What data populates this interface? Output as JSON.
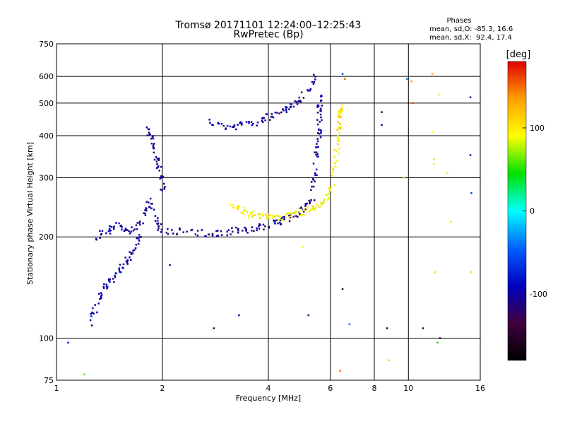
{
  "chart_data": {
    "type": "scatter",
    "title": "Tromsø 20171101 12:24:00–12:25:43",
    "subtitle": "RwPretec (Bp)",
    "xlabel": "Frequency [MHz]",
    "ylabel": "Stationary phase Virtual Height [km]",
    "x_scale": "log",
    "y_scale": "log",
    "xlim": [
      1,
      16
    ],
    "ylim": [
      75,
      750
    ],
    "x_ticks": [
      1,
      2,
      4,
      6,
      8,
      10,
      16
    ],
    "x_tick_labels": [
      "1",
      "2",
      "4",
      "6",
      "8",
      "10",
      "16"
    ],
    "y_ticks": [
      75,
      100,
      200,
      300,
      400,
      500,
      600,
      750
    ],
    "y_tick_labels": [
      "75",
      "100",
      "200",
      "300",
      "400",
      "500",
      "600",
      "750"
    ],
    "grid": true,
    "stats": {
      "title": "Phases",
      "line_o": "mean, sd,O: -85.3, 16.6",
      "line_x": "mean, sd,X:  92.4, 17.4"
    },
    "colorbar": {
      "label": "[deg]",
      "range": [
        -180,
        180
      ],
      "ticks": [
        100,
        0,
        -100
      ],
      "tick_labels": [
        "100",
        "0",
        "-100"
      ],
      "colors": [
        "#e00000",
        "#ffa000",
        "#ffff00",
        "#00e000",
        "#00ffff",
        "#0060ff",
        "#0000c0",
        "#400040",
        "#000000"
      ]
    },
    "series": [
      {
        "segments": [
          {
            "x": [
              1.24,
              1.28,
              1.32,
              1.36,
              1.4,
              1.45,
              1.5,
              1.55,
              1.6,
              1.65,
              1.7,
              1.72
            ],
            "y": [
              110,
              120,
              130,
              138,
              145,
              150,
              158,
              165,
              172,
              180,
              190,
              200
            ],
            "phase": -95
          },
          {
            "x": [
              1.3,
              1.35,
              1.42,
              1.48,
              1.55,
              1.62,
              1.68,
              1.75,
              1.8,
              1.85,
              1.9,
              1.95,
              2.0
            ],
            "y": [
              200,
              205,
              210,
              215,
              212,
              208,
              215,
              225,
              240,
              260,
              230,
              215,
              210
            ],
            "phase": -100
          },
          {
            "x": [
              1.82,
              1.85,
              1.88,
              1.92,
              1.95,
              1.98,
              2.0,
              2.02
            ],
            "y": [
              420,
              400,
              380,
              350,
              330,
              310,
              290,
              270
            ],
            "phase": -105
          },
          {
            "x": [
              2.05,
              2.2,
              2.4,
              2.6,
              2.8,
              3.0,
              3.2,
              3.4,
              3.6,
              3.8,
              4.0,
              4.2,
              4.4,
              4.6,
              4.8,
              5.0,
              5.2,
              5.4
            ],
            "y": [
              208,
              208,
              207,
              206,
              205,
              206,
              208,
              210,
              212,
              214,
              217,
              220,
              224,
              228,
              233,
              240,
              250,
              265
            ],
            "phase": -110
          },
          {
            "x": [
              5.3,
              5.4,
              5.45,
              5.5,
              5.55,
              5.58,
              5.6,
              5.6,
              5.6,
              5.6
            ],
            "y": [
              280,
              300,
              330,
              360,
              390,
              420,
              450,
              480,
              500,
              520
            ],
            "phase": -105
          },
          {
            "x": [
              2.7,
              2.9,
              3.1,
              3.3,
              3.5,
              3.7,
              3.9,
              4.1,
              4.3,
              4.5,
              4.7,
              4.9,
              5.1,
              5.3,
              5.5
            ],
            "y": [
              440,
              430,
              425,
              430,
              435,
              440,
              450,
              460,
              470,
              480,
              495,
              510,
              530,
              560,
              600
            ],
            "phase": -100
          },
          {
            "x": [
              3.1,
              3.25,
              3.4,
              3.55,
              3.7,
              3.85,
              4.0,
              4.2,
              4.4,
              4.6,
              4.8,
              5.0,
              5.2,
              5.4,
              5.6,
              5.8,
              6.0,
              6.1
            ],
            "y": [
              255,
              245,
              238,
              233,
              230,
              229,
              228,
              228,
              230,
              232,
              234,
              237,
              240,
              245,
              250,
              258,
              270,
              290
            ],
            "phase": 95
          },
          {
            "x": [
              6.1,
              6.2,
              6.25,
              6.3,
              6.35,
              6.4,
              6.4,
              6.4,
              6.4
            ],
            "y": [
              300,
              330,
              360,
              390,
              420,
              450,
              480,
              470,
              490
            ],
            "phase": 100
          }
        ]
      }
    ],
    "scattered_points": [
      {
        "x": 1.08,
        "y": 97,
        "phase": -80
      },
      {
        "x": 1.2,
        "y": 78,
        "phase": 60
      },
      {
        "x": 2.1,
        "y": 165,
        "phase": -110
      },
      {
        "x": 2.8,
        "y": 107,
        "phase": -120
      },
      {
        "x": 3.3,
        "y": 117,
        "phase": -90
      },
      {
        "x": 5.0,
        "y": 187,
        "phase": 100
      },
      {
        "x": 5.2,
        "y": 117,
        "phase": -120
      },
      {
        "x": 6.4,
        "y": 80,
        "phase": 150
      },
      {
        "x": 6.5,
        "y": 140,
        "phase": -150
      },
      {
        "x": 6.8,
        "y": 110,
        "phase": -40
      },
      {
        "x": 8.4,
        "y": 470,
        "phase": -120
      },
      {
        "x": 8.4,
        "y": 430,
        "phase": -110
      },
      {
        "x": 8.7,
        "y": 107,
        "phase": -150
      },
      {
        "x": 8.8,
        "y": 86,
        "phase": 110
      },
      {
        "x": 9.7,
        "y": 300,
        "phase": 110
      },
      {
        "x": 9.9,
        "y": 590,
        "phase": -40
      },
      {
        "x": 10.2,
        "y": 580,
        "phase": 140
      },
      {
        "x": 10.3,
        "y": 500,
        "phase": 160
      },
      {
        "x": 11.0,
        "y": 107,
        "phase": -120
      },
      {
        "x": 11.7,
        "y": 610,
        "phase": 130
      },
      {
        "x": 11.7,
        "y": 410,
        "phase": 90
      },
      {
        "x": 11.8,
        "y": 340,
        "phase": 110
      },
      {
        "x": 11.8,
        "y": 330,
        "phase": 100
      },
      {
        "x": 11.9,
        "y": 157,
        "phase": 110
      },
      {
        "x": 12.1,
        "y": 97,
        "phase": 50
      },
      {
        "x": 12.2,
        "y": 530,
        "phase": 100
      },
      {
        "x": 12.3,
        "y": 100,
        "phase": -150
      },
      {
        "x": 12.9,
        "y": 310,
        "phase": 100
      },
      {
        "x": 13.2,
        "y": 222,
        "phase": 100
      },
      {
        "x": 15.0,
        "y": 520,
        "phase": -100
      },
      {
        "x": 15.0,
        "y": 350,
        "phase": -90
      },
      {
        "x": 15.1,
        "y": 270,
        "phase": -60
      },
      {
        "x": 15.1,
        "y": 157,
        "phase": 110
      },
      {
        "x": 6.5,
        "y": 610,
        "phase": -60
      },
      {
        "x": 6.6,
        "y": 590,
        "phase": 150
      }
    ]
  }
}
